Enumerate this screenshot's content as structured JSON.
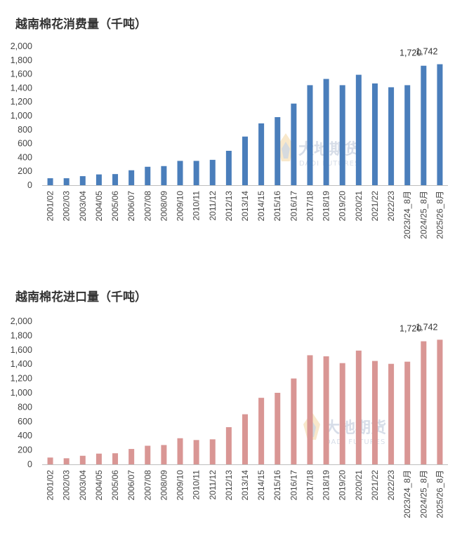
{
  "watermark": {
    "main": "大地期货",
    "sub": "DADI FUTURES"
  },
  "chart_data": [
    {
      "type": "bar",
      "title": "越南棉花消费量（千吨）",
      "color": "#4a7ebb",
      "ylim": [
        0,
        2000
      ],
      "yticks": [
        "0",
        "200",
        "400",
        "600",
        "800",
        "1,000",
        "1,200",
        "1,400",
        "1,600",
        "1,800",
        "2,000"
      ],
      "categories": [
        "2001/02",
        "2002/03",
        "2003/04",
        "2004/05",
        "2005/06",
        "2006/07",
        "2007/08",
        "2008/09",
        "2009/10",
        "2010/11",
        "2011/12",
        "2012/13",
        "2013/14",
        "2014/15",
        "2015/16",
        "2016/17",
        "2017/18",
        "2018/19",
        "2019/20",
        "2020/21",
        "2021/22",
        "2022/23",
        "2023/24_8月",
        "2024/25_8月",
        "2025/26_8月"
      ],
      "values": [
        100,
        100,
        130,
        155,
        160,
        215,
        265,
        275,
        350,
        350,
        365,
        495,
        700,
        890,
        980,
        1175,
        1440,
        1530,
        1440,
        1590,
        1465,
        1410,
        1440,
        1720,
        1742
      ],
      "data_labels": [
        {
          "category": "2024/25_8月",
          "text": "1,720"
        },
        {
          "category": "2025/26_8月",
          "text": "1,742"
        }
      ]
    },
    {
      "type": "bar",
      "title": "越南棉花进口量（千吨）",
      "color": "#d99694",
      "ylim": [
        0,
        2000
      ],
      "yticks": [
        "0",
        "200",
        "400",
        "600",
        "800",
        "1,000",
        "1,200",
        "1,400",
        "1,600",
        "1,800",
        "2,000"
      ],
      "categories": [
        "2001/02",
        "2002/03",
        "2003/04",
        "2004/05",
        "2005/06",
        "2006/07",
        "2007/08",
        "2008/09",
        "2009/10",
        "2010/11",
        "2011/12",
        "2012/13",
        "2013/14",
        "2014/15",
        "2015/16",
        "2016/17",
        "2017/18",
        "2018/19",
        "2019/20",
        "2020/21",
        "2021/22",
        "2022/23",
        "2023/24_8月",
        "2024/25_8月",
        "2025/26_8月"
      ],
      "values": [
        95,
        85,
        120,
        150,
        155,
        215,
        260,
        270,
        365,
        340,
        350,
        520,
        700,
        930,
        1000,
        1200,
        1525,
        1510,
        1415,
        1590,
        1445,
        1405,
        1435,
        1720,
        1742
      ],
      "data_labels": [
        {
          "category": "2024/25_8月",
          "text": "1,720"
        },
        {
          "category": "2025/26_8月",
          "text": "1,742"
        }
      ]
    }
  ]
}
